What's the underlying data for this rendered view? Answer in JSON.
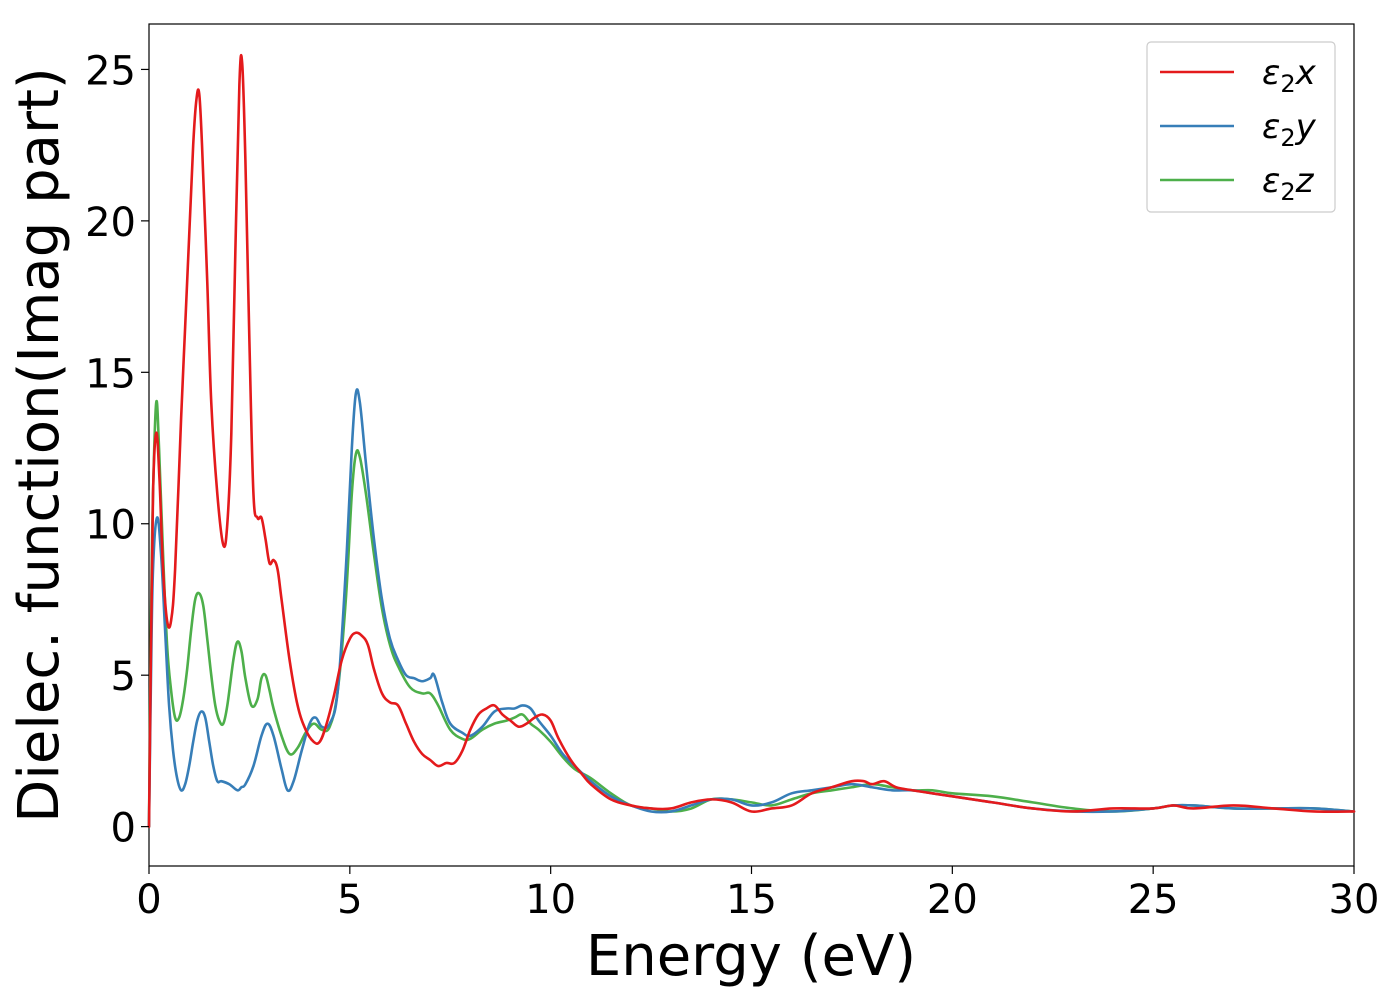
{
  "chart_data": {
    "type": "line",
    "xlabel": "Energy (eV)",
    "ylabel": "Dielec. function(Imag part)",
    "xlim": [
      0,
      30
    ],
    "ylim": [
      -1.3,
      26.5
    ],
    "xticks": [
      "0",
      "5",
      "10",
      "15",
      "20",
      "25",
      "30"
    ],
    "yticks": [
      "0",
      "5",
      "10",
      "15",
      "20",
      "25"
    ],
    "grid": false,
    "legend_position": "top-right",
    "series": [
      {
        "name": "ε2x",
        "legend": {
          "base": "ε",
          "sub": "2",
          "var": "x"
        },
        "color": "#e41a1c",
        "x": [
          0,
          0.05,
          0.1,
          0.18,
          0.26,
          0.35,
          0.45,
          0.55,
          0.65,
          0.8,
          0.9,
          1.0,
          1.1,
          1.18,
          1.25,
          1.32,
          1.45,
          1.55,
          1.7,
          1.85,
          1.95,
          2.05,
          2.15,
          2.25,
          2.32,
          2.4,
          2.5,
          2.6,
          2.7,
          2.8,
          2.9,
          3.0,
          3.1,
          3.2,
          3.3,
          3.5,
          3.7,
          3.9,
          4.1,
          4.25,
          4.4,
          4.6,
          4.8,
          5.0,
          5.15,
          5.3,
          5.45,
          5.6,
          5.8,
          6.0,
          6.2,
          6.4,
          6.6,
          6.8,
          7.0,
          7.2,
          7.4,
          7.6,
          7.8,
          8.0,
          8.2,
          8.4,
          8.6,
          8.8,
          9.0,
          9.2,
          9.4,
          9.6,
          9.8,
          10.0,
          10.2,
          10.5,
          10.8,
          11.0,
          11.5,
          12.0,
          12.5,
          13.0,
          13.5,
          14.0,
          14.5,
          15.0,
          15.5,
          16.0,
          16.5,
          17.0,
          17.5,
          17.8,
          18.0,
          18.3,
          18.6,
          19.0,
          19.5,
          20.0,
          21.0,
          22.0,
          23.0,
          24.0,
          25.0,
          25.5,
          26.0,
          27.0,
          28.0,
          29.0,
          30.0
        ],
        "values": [
          0,
          6.0,
          11.0,
          13.0,
          11.5,
          8.5,
          6.8,
          6.8,
          8.5,
          13.5,
          16.5,
          19.5,
          22.5,
          24.0,
          24.2,
          22.5,
          18.0,
          14.0,
          11.0,
          9.3,
          10.0,
          13.0,
          19.0,
          24.5,
          25.2,
          22.0,
          16.0,
          11.0,
          10.2,
          10.2,
          9.5,
          8.7,
          8.8,
          8.5,
          7.5,
          5.5,
          4.0,
          3.2,
          2.8,
          2.8,
          3.3,
          4.3,
          5.5,
          6.2,
          6.4,
          6.3,
          6.0,
          5.2,
          4.4,
          4.1,
          4.0,
          3.4,
          2.8,
          2.4,
          2.2,
          2.0,
          2.1,
          2.1,
          2.5,
          3.2,
          3.7,
          3.9,
          4.0,
          3.7,
          3.5,
          3.3,
          3.4,
          3.6,
          3.7,
          3.5,
          2.9,
          2.2,
          1.7,
          1.4,
          0.9,
          0.7,
          0.6,
          0.6,
          0.8,
          0.9,
          0.8,
          0.5,
          0.6,
          0.7,
          1.1,
          1.3,
          1.5,
          1.5,
          1.4,
          1.5,
          1.3,
          1.2,
          1.1,
          1.0,
          0.8,
          0.6,
          0.5,
          0.6,
          0.6,
          0.7,
          0.6,
          0.7,
          0.6,
          0.5,
          0.5
        ]
      },
      {
        "name": "ε2y",
        "legend": {
          "base": "ε",
          "sub": "2",
          "var": "y"
        },
        "color": "#377eb8",
        "x": [
          0,
          0.05,
          0.1,
          0.2,
          0.3,
          0.4,
          0.5,
          0.6,
          0.7,
          0.8,
          0.9,
          1.0,
          1.1,
          1.2,
          1.3,
          1.4,
          1.5,
          1.6,
          1.7,
          1.8,
          2.0,
          2.2,
          2.3,
          2.4,
          2.6,
          2.8,
          2.95,
          3.1,
          3.3,
          3.45,
          3.6,
          3.8,
          4.0,
          4.15,
          4.3,
          4.5,
          4.7,
          4.9,
          5.05,
          5.15,
          5.25,
          5.4,
          5.6,
          5.8,
          6.0,
          6.2,
          6.4,
          6.6,
          6.8,
          7.0,
          7.1,
          7.3,
          7.5,
          7.8,
          8.0,
          8.3,
          8.6,
          8.9,
          9.1,
          9.3,
          9.5,
          9.7,
          10.0,
          10.3,
          10.6,
          11.0,
          11.5,
          12.0,
          12.5,
          13.0,
          13.5,
          14.0,
          14.5,
          15.0,
          15.5,
          16.0,
          16.5,
          17.0,
          17.5,
          18.0,
          18.5,
          19.0,
          19.5,
          20.0,
          21.0,
          22.0,
          23.0,
          24.0,
          25.0,
          25.5,
          26.0,
          27.0,
          28.0,
          29.0,
          30.0
        ],
        "values": [
          0,
          5.0,
          8.5,
          10.2,
          9.0,
          6.5,
          4.0,
          2.5,
          1.6,
          1.2,
          1.4,
          2.0,
          2.8,
          3.5,
          3.8,
          3.6,
          2.8,
          2.0,
          1.5,
          1.5,
          1.4,
          1.2,
          1.3,
          1.4,
          2.0,
          3.0,
          3.4,
          3.0,
          1.9,
          1.2,
          1.5,
          2.5,
          3.4,
          3.6,
          3.3,
          3.4,
          4.5,
          8.5,
          12.5,
          14.3,
          14.0,
          12.0,
          9.5,
          7.5,
          6.2,
          5.5,
          5.0,
          4.9,
          4.8,
          4.9,
          5.0,
          4.1,
          3.4,
          3.1,
          3.0,
          3.3,
          3.8,
          3.9,
          3.9,
          4.0,
          3.9,
          3.5,
          3.0,
          2.4,
          2.0,
          1.5,
          1.0,
          0.7,
          0.5,
          0.5,
          0.7,
          0.9,
          0.9,
          0.7,
          0.8,
          1.1,
          1.2,
          1.3,
          1.4,
          1.3,
          1.2,
          1.2,
          1.1,
          1.0,
          0.8,
          0.6,
          0.5,
          0.5,
          0.6,
          0.7,
          0.7,
          0.6,
          0.6,
          0.6,
          0.5
        ]
      },
      {
        "name": "ε2z",
        "legend": {
          "base": "ε",
          "sub": "2",
          "var": "z"
        },
        "color": "#4daf4a",
        "x": [
          0,
          0.05,
          0.1,
          0.18,
          0.25,
          0.35,
          0.45,
          0.55,
          0.65,
          0.75,
          0.85,
          0.95,
          1.05,
          1.15,
          1.25,
          1.35,
          1.45,
          1.55,
          1.65,
          1.75,
          1.85,
          1.95,
          2.1,
          2.2,
          2.3,
          2.4,
          2.55,
          2.7,
          2.8,
          2.9,
          3.0,
          3.1,
          3.3,
          3.5,
          3.7,
          3.9,
          4.1,
          4.3,
          4.5,
          4.7,
          4.9,
          5.05,
          5.15,
          5.25,
          5.4,
          5.6,
          5.8,
          6.0,
          6.2,
          6.5,
          6.8,
          7.0,
          7.2,
          7.5,
          7.8,
          8.0,
          8.3,
          8.6,
          8.9,
          9.1,
          9.3,
          9.5,
          9.7,
          10.0,
          10.3,
          10.6,
          11.0,
          11.5,
          12.0,
          12.5,
          13.0,
          13.5,
          14.0,
          14.5,
          15.0,
          15.5,
          16.0,
          16.5,
          17.0,
          17.5,
          18.0,
          18.5,
          19.0,
          19.5,
          20.0,
          21.0,
          22.0,
          23.0,
          24.0,
          25.0,
          25.5,
          26.0,
          27.0,
          28.0,
          29.0,
          30.0
        ],
        "values": [
          0,
          7.0,
          11.0,
          14.0,
          12.5,
          9.0,
          6.0,
          4.5,
          3.6,
          3.6,
          4.2,
          5.2,
          6.5,
          7.5,
          7.7,
          7.3,
          6.2,
          5.0,
          4.0,
          3.5,
          3.4,
          4.0,
          5.5,
          6.1,
          5.8,
          4.9,
          4.0,
          4.2,
          4.9,
          5.0,
          4.5,
          3.9,
          3.0,
          2.4,
          2.6,
          3.1,
          3.4,
          3.2,
          3.3,
          4.5,
          7.5,
          11.0,
          12.3,
          12.2,
          11.0,
          9.0,
          7.2,
          6.0,
          5.3,
          4.6,
          4.4,
          4.4,
          4.0,
          3.2,
          2.9,
          2.9,
          3.2,
          3.4,
          3.5,
          3.6,
          3.7,
          3.4,
          3.2,
          2.8,
          2.3,
          1.9,
          1.6,
          1.1,
          0.7,
          0.6,
          0.5,
          0.6,
          0.9,
          0.9,
          0.8,
          0.7,
          0.9,
          1.1,
          1.2,
          1.3,
          1.4,
          1.3,
          1.2,
          1.2,
          1.1,
          1.0,
          0.8,
          0.6,
          0.5,
          0.6,
          0.7,
          0.7,
          0.6,
          0.6,
          0.6,
          0.5
        ]
      }
    ]
  }
}
